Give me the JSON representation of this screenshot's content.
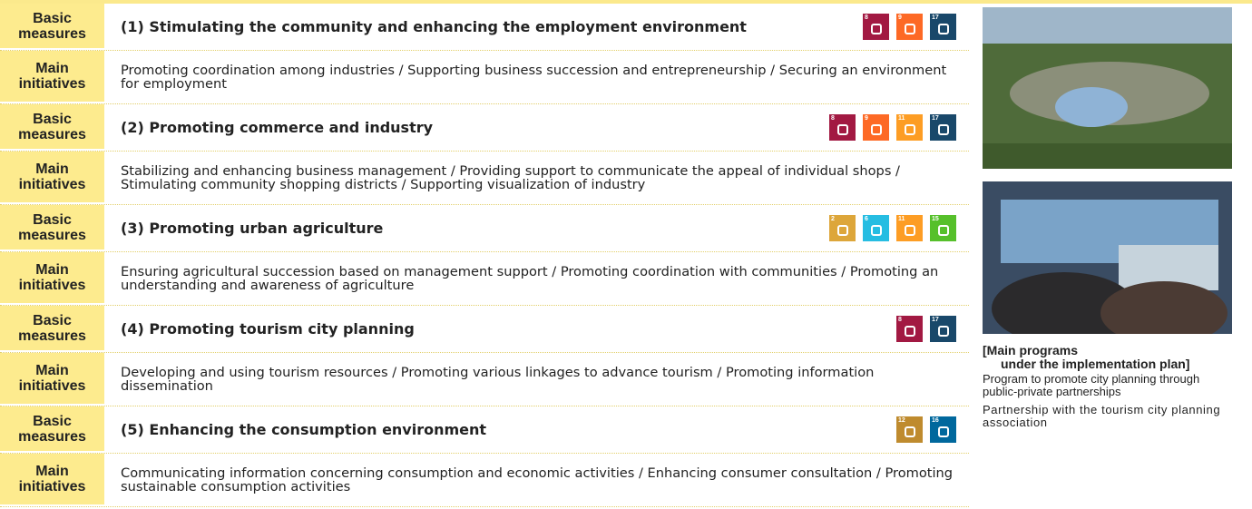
{
  "sections": [
    {
      "basic_label": "Basic measures",
      "title": "(1) Stimulating the community and enhancing the employment environment",
      "sdgs": [
        {
          "goal": 8,
          "color": "#a21942"
        },
        {
          "goal": 9,
          "color": "#fd6925"
        },
        {
          "goal": 17,
          "color": "#19486a"
        }
      ],
      "main_label": "Main initiatives",
      "initiatives": "Promoting coordination among industries / Supporting business succession and entrepreneurship / Securing an environment for employment"
    },
    {
      "basic_label": "Basic measures",
      "title": "(2) Promoting commerce and industry",
      "sdgs": [
        {
          "goal": 8,
          "color": "#a21942"
        },
        {
          "goal": 9,
          "color": "#fd6925"
        },
        {
          "goal": 11,
          "color": "#fd9d24"
        },
        {
          "goal": 17,
          "color": "#19486a"
        }
      ],
      "main_label": "Main initiatives",
      "initiatives": "Stabilizing and enhancing business management / Providing support to communicate the appeal of individual shops / Stimulating community shopping districts / Supporting visualization of industry"
    },
    {
      "basic_label": "Basic measures",
      "title": "(3) Promoting urban agriculture",
      "sdgs": [
        {
          "goal": 2,
          "color": "#dda63a"
        },
        {
          "goal": 6,
          "color": "#26bde2"
        },
        {
          "goal": 11,
          "color": "#fd9d24"
        },
        {
          "goal": 15,
          "color": "#56c02b"
        }
      ],
      "main_label": "Main initiatives",
      "initiatives": "Ensuring agricultural succession based on management support / Promoting coordination with communities / Promoting an understanding and awareness of agriculture"
    },
    {
      "basic_label": "Basic measures",
      "title": "(4) Promoting tourism city planning",
      "sdgs": [
        {
          "goal": 8,
          "color": "#a21942"
        },
        {
          "goal": 17,
          "color": "#19486a"
        }
      ],
      "main_label": "Main initiatives",
      "initiatives": "Developing and using tourism resources / Promoting various linkages to advance tourism / Promoting information dissemination"
    },
    {
      "basic_label": "Basic measures",
      "title": "(5) Enhancing the consumption environment",
      "sdgs": [
        {
          "goal": 12,
          "color": "#bf8b2e"
        },
        {
          "goal": 16,
          "color": "#00689d"
        }
      ],
      "main_label": "Main initiatives",
      "initiatives": "Communicating information concerning consumption and economic activities / Enhancing consumer consultation / Promoting sustainable consumption activities"
    }
  ],
  "sidebar": {
    "caption_lines": [
      "[Main programs",
      "under the implementation plan]"
    ],
    "programs": [
      "Program to promote city planning through public-private partnerships",
      "Partnership with the tourism city planning association"
    ]
  }
}
